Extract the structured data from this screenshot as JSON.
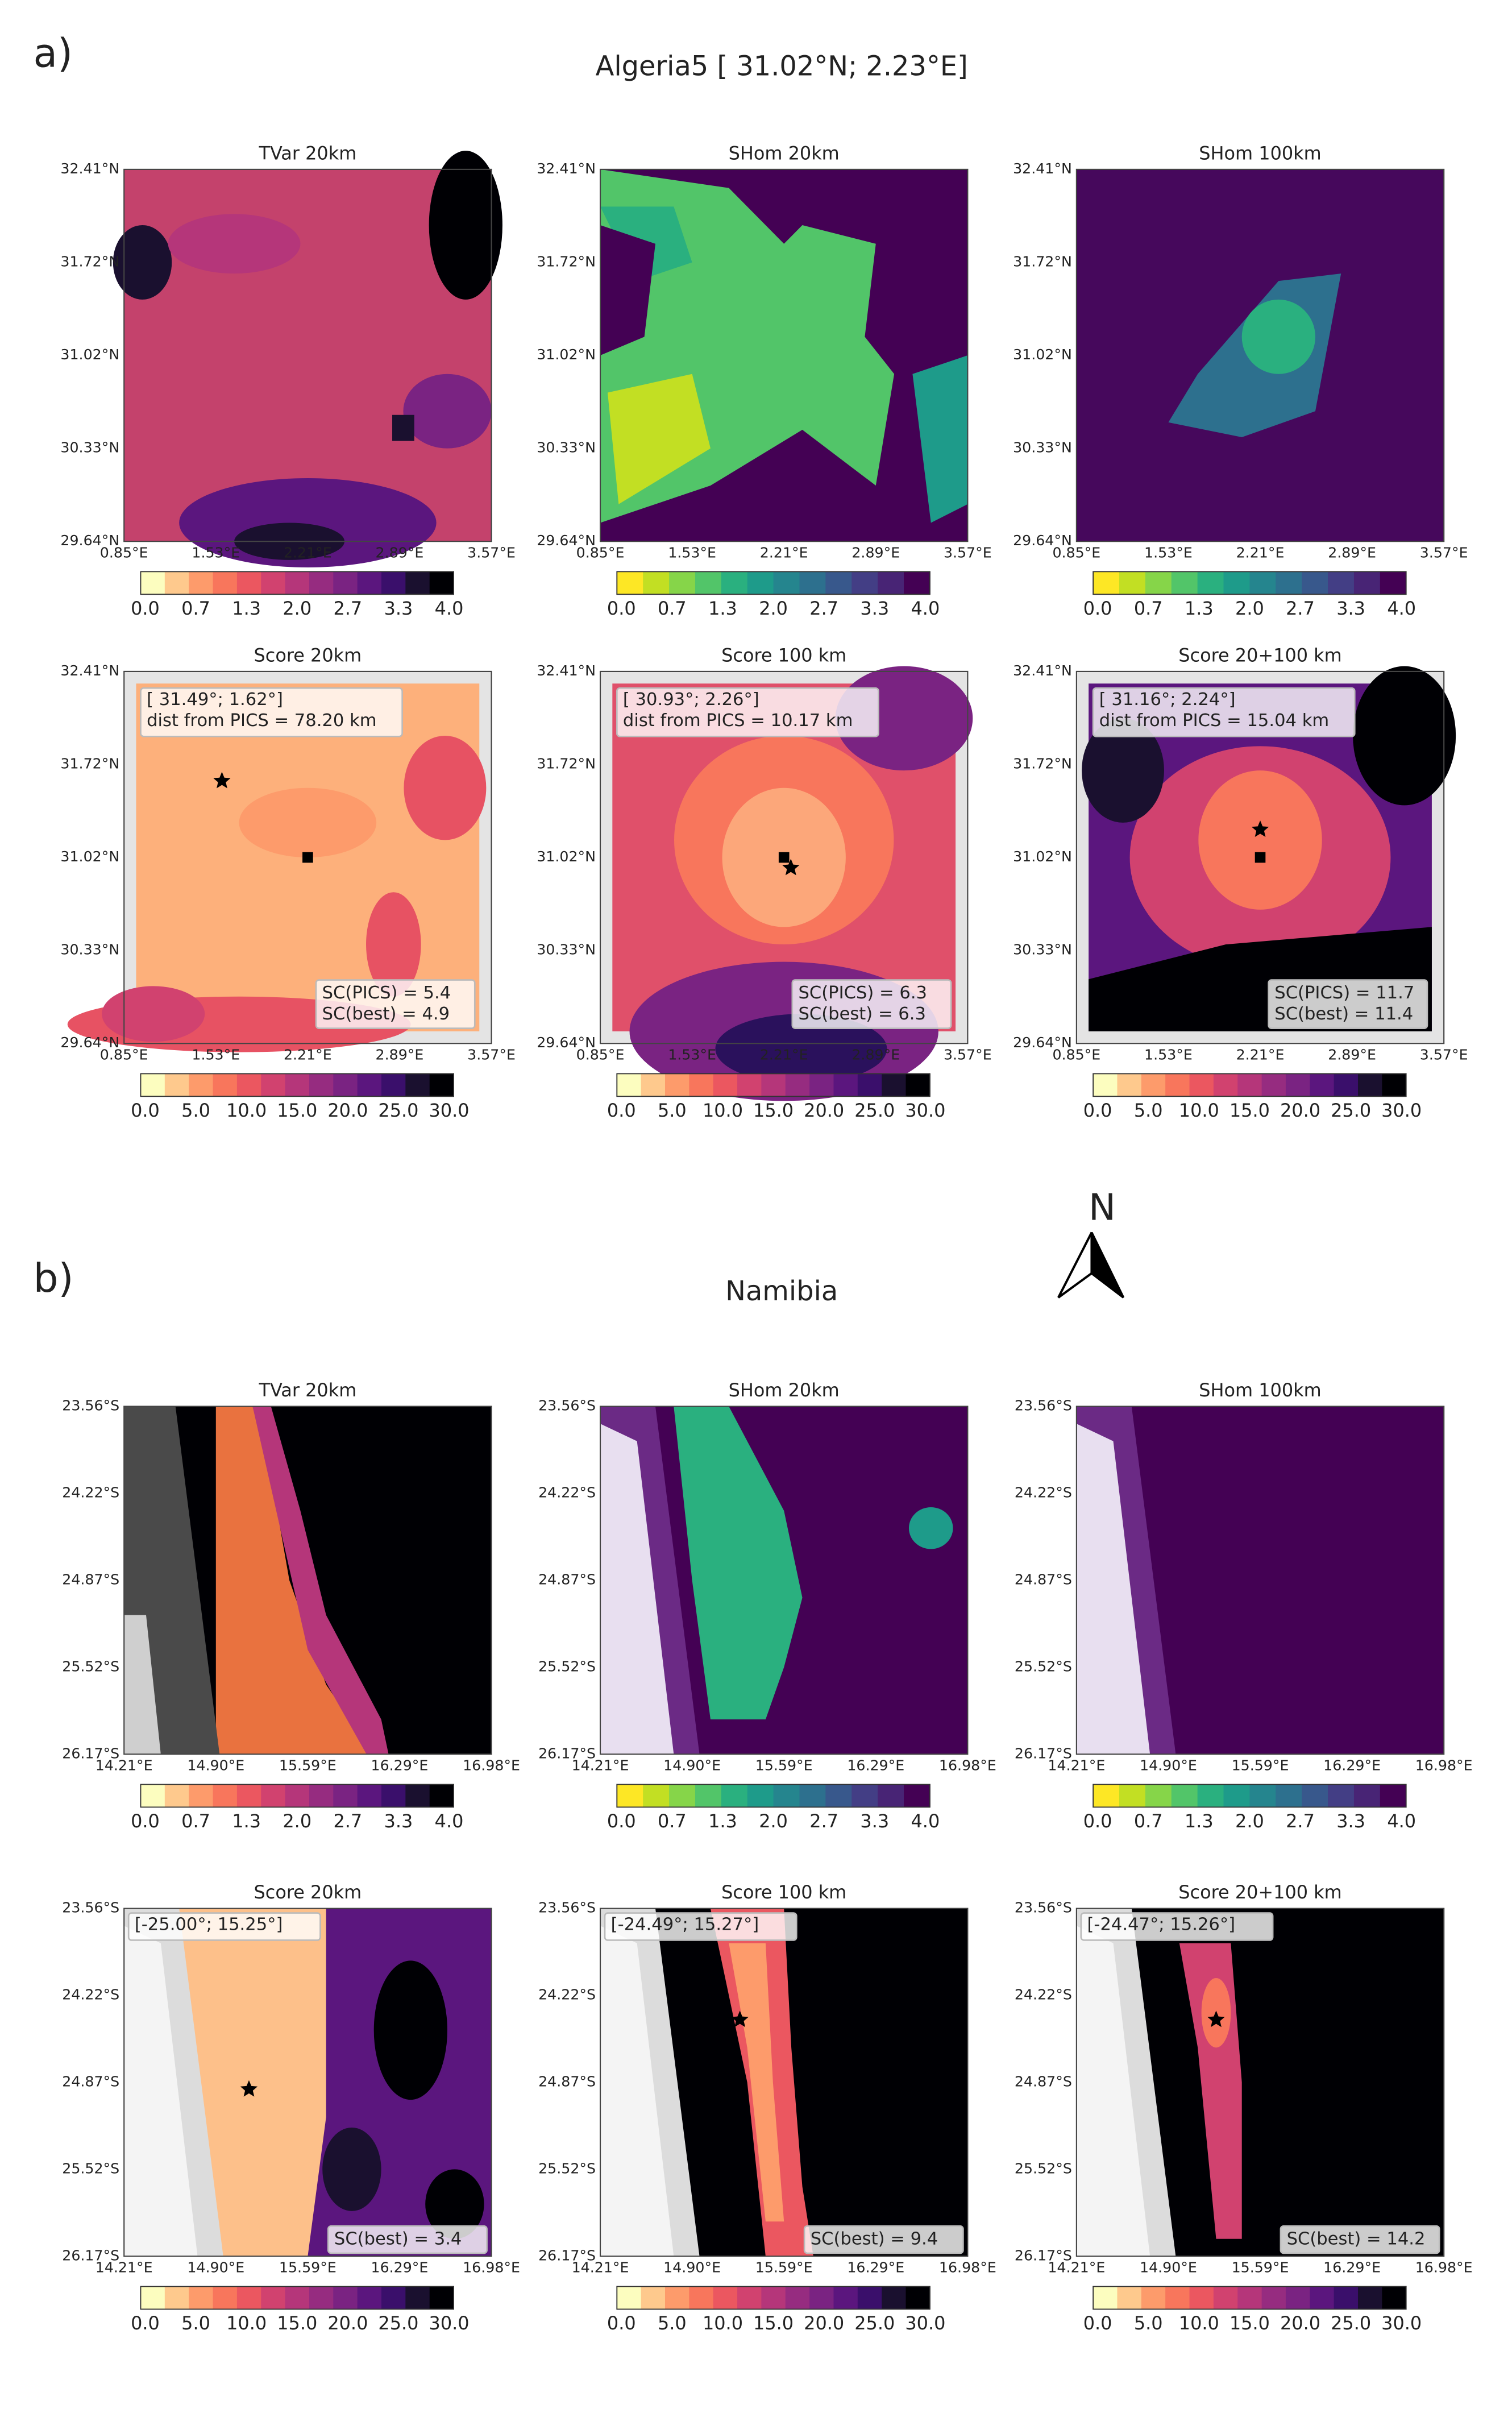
{
  "sections": [
    {
      "label": "a)",
      "title": "Algeria5 [  31.02°N;   2.23°E]",
      "lat_ticks": [
        "32.41°N",
        "31.72°N",
        "31.02°N",
        "30.33°N",
        "29.64°N"
      ],
      "lon_ticks": [
        "0.85°E",
        "1.53°E",
        "2.21°E",
        "2.89°E",
        "3.57°E"
      ],
      "panels": [
        {
          "title": "TVar 20km",
          "colorbar": "tvar"
        },
        {
          "title": "SHom 20km",
          "colorbar": "shom"
        },
        {
          "title": "SHom 100km",
          "colorbar": "shom"
        },
        {
          "title": "Score 20km",
          "colorbar": "score",
          "location": [
            "[ 31.49°;  1.62°]",
            "dist from PICS = 78.20 km"
          ],
          "scores": [
            "SC(PICS) =  5.4",
            "SC(best) =  4.9"
          ]
        },
        {
          "title": "Score 100 km",
          "colorbar": "score",
          "location": [
            "[ 30.93°;  2.26°]",
            "dist from PICS = 10.17 km"
          ],
          "scores": [
            "SC(PICS) =  6.3",
            "SC(best) =  6.3"
          ]
        },
        {
          "title": "Score 20+100 km",
          "colorbar": "score",
          "location": [
            "[ 31.16°;  2.24°]",
            "dist from PICS = 15.04 km"
          ],
          "scores": [
            "SC(PICS) = 11.7",
            "SC(best) = 11.4"
          ]
        }
      ]
    },
    {
      "label": "b)",
      "title": "Namibia",
      "lat_ticks": [
        "23.56°S",
        "24.22°S",
        "24.87°S",
        "25.52°S",
        "26.17°S"
      ],
      "lon_ticks": [
        "14.21°E",
        "14.90°E",
        "15.59°E",
        "16.29°E",
        "16.98°E"
      ],
      "panels": [
        {
          "title": "TVar 20km",
          "colorbar": "tvar"
        },
        {
          "title": "SHom 20km",
          "colorbar": "shom"
        },
        {
          "title": "SHom 100km",
          "colorbar": "shom"
        },
        {
          "title": "Score 20km",
          "colorbar": "score",
          "location": [
            "[-25.00°;  15.25°]"
          ],
          "scores": [
            "SC(best) =  3.4"
          ]
        },
        {
          "title": "Score 100 km",
          "colorbar": "score",
          "location": [
            "[-24.49°;  15.27°]"
          ],
          "scores": [
            "SC(best) =  9.4"
          ]
        },
        {
          "title": "Score 20+100 km",
          "colorbar": "score",
          "location": [
            "[-24.47°;  15.26°]"
          ],
          "scores": [
            "SC(best) = 14.2"
          ]
        }
      ]
    }
  ],
  "north_label": "N",
  "colorbars": {
    "tvar": {
      "ticks": [
        "0.0",
        "0.7",
        "1.3",
        "2.0",
        "2.7",
        "3.3",
        "4.0"
      ],
      "colors": [
        "#fcfdbf",
        "#fec98d",
        "#fd9b6b",
        "#f8765c",
        "#eb5760",
        "#d1426f",
        "#b5367a",
        "#962c80",
        "#7a2382",
        "#5b167e",
        "#3a0f6b",
        "#1a102f",
        "#000004"
      ]
    },
    "shom": {
      "ticks": [
        "0.0",
        "0.7",
        "1.3",
        "2.0",
        "2.7",
        "3.3",
        "4.0"
      ],
      "colors": [
        "#fde725",
        "#c2df23",
        "#86d549",
        "#52c569",
        "#2ab07f",
        "#1e9b8a",
        "#25858e",
        "#2d708e",
        "#38588c",
        "#433e85",
        "#482475",
        "#440154"
      ]
    },
    "score": {
      "ticks": [
        "0.0",
        "5.0",
        "10.0",
        "15.0",
        "20.0",
        "25.0",
        "30.0"
      ],
      "colors": [
        "#fcfdbf",
        "#fec98d",
        "#fd9b6b",
        "#f8765c",
        "#eb5760",
        "#d1426f",
        "#b5367a",
        "#962c80",
        "#7a2382",
        "#5b167e",
        "#3a0f6b",
        "#1a102f",
        "#000004"
      ]
    }
  }
}
